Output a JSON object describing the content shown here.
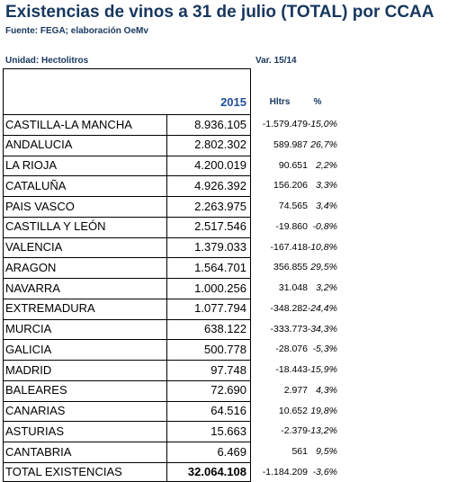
{
  "header": {
    "title": "Existencias de vinos a 31 de julio (TOTAL) por CCAA",
    "source": "Fuente: FEGA; elaboración OeMv",
    "unit": "Unidad: Hectolitros",
    "variation": "Var. 15/14"
  },
  "table": {
    "columns": [
      "2015",
      "Hltrs",
      "%"
    ],
    "rows": [
      [
        "CASTILLA-LA MANCHA",
        "8.936.105",
        "-1.579.479",
        "-15,0%"
      ],
      [
        "ANDALUCIA",
        "2.802.302",
        "589.987",
        "26,7%"
      ],
      [
        "LA RIOJA",
        "4.200.019",
        "90.651",
        "2,2%"
      ],
      [
        "CATALUÑA",
        "4.926.392",
        "156.206",
        "3,3%"
      ],
      [
        "PAIS VASCO",
        "2.263.975",
        "74.565",
        "3,4%"
      ],
      [
        "CASTILLA Y LEÓN",
        "2.517.546",
        "-19.860",
        "-0,8%"
      ],
      [
        "VALENCIA",
        "1.379.033",
        "-167.418",
        "-10,8%"
      ],
      [
        "ARAGON",
        "1.564.701",
        "356.855",
        "29,5%"
      ],
      [
        "NAVARRA",
        "1.000.256",
        "31.048",
        "3,2%"
      ],
      [
        "EXTREMADURA",
        "1.077.794",
        "-348.282",
        "-24,4%"
      ],
      [
        "MURCIA",
        "638.122",
        "-333.773",
        "-34,3%"
      ],
      [
        "GALICIA",
        "500.778",
        "-28.076",
        "-5,3%"
      ],
      [
        "MADRID",
        "97.748",
        "-18.443",
        "-15,9%"
      ],
      [
        "BALEARES",
        "72.690",
        "2.977",
        "4,3%"
      ],
      [
        "CANARIAS",
        "64.516",
        "10.652",
        "19,8%"
      ],
      [
        "ASTURIAS",
        "15.663",
        "-2.379",
        "-13,2%"
      ],
      [
        "CANTABRIA",
        "6.469",
        "561",
        "9,5%"
      ],
      [
        "TOTAL EXISTENCIAS",
        "32.064.108",
        "-1.184.209",
        "-3,6%"
      ]
    ]
  }
}
